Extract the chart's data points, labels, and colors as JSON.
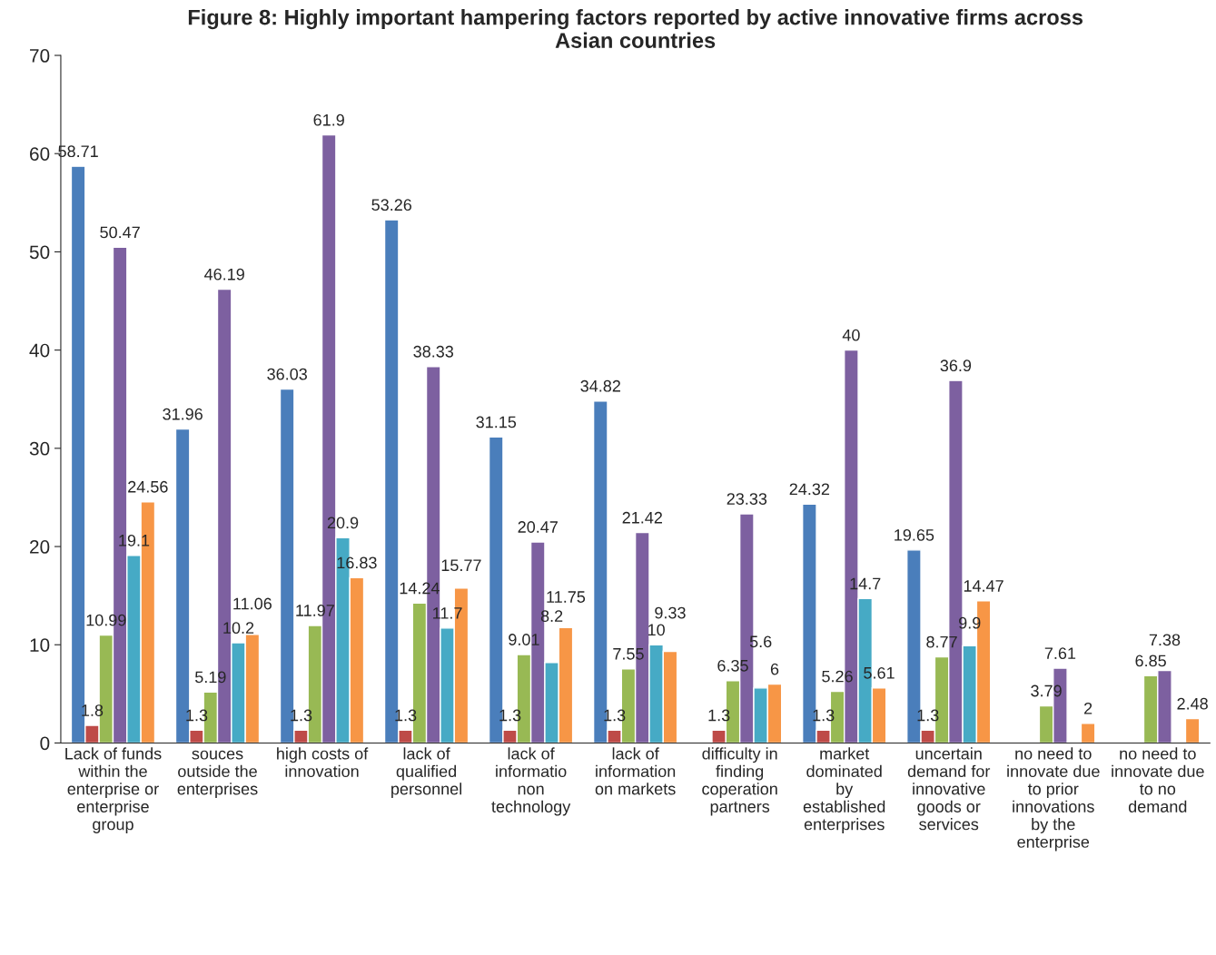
{
  "chart_data": {
    "type": "bar",
    "title": "Figure 8: Highly important hampering factors reported by active innovative firms across\nAsian countries",
    "categories": [
      "Lack of funds\nwithin the\nenterprise or\nenterprise\ngroup",
      "souces\noutside the\nenterprises",
      "high costs of\ninnovation",
      "lack of\nqualified\npersonnel",
      "lack of\ninformatio\nnon\ntechnology",
      "lack of\ninformation\non markets",
      "difficulty in\nfinding\ncoperation\npartners",
      "market\ndominated\nby\nestablished\nenterprises",
      "uncertain\ndemand for\ninnovative\ngoods or\nservices",
      "no need to\ninnovate due\nto prior\ninnovations\nby the\nenterprise",
      "no need to\ninnovate due\nto no\ndemand"
    ],
    "series": [
      {
        "color": "#4a7ebb",
        "values": [
          58.71,
          31.96,
          36.03,
          53.26,
          31.15,
          34.82,
          null,
          24.32,
          19.65,
          null,
          null
        ]
      },
      {
        "color": "#be4b48",
        "values": [
          1.8,
          1.3,
          1.3,
          1.3,
          1.3,
          1.3,
          1.3,
          1.3,
          1.3,
          null,
          null
        ]
      },
      {
        "color": "#98b954",
        "values": [
          10.99,
          5.19,
          11.97,
          14.24,
          9.01,
          7.55,
          6.35,
          5.26,
          8.77,
          3.79,
          6.85
        ]
      },
      {
        "color": "#7d60a0",
        "values": [
          50.47,
          46.19,
          61.9,
          38.33,
          20.47,
          21.42,
          23.33,
          40,
          36.9,
          7.61,
          7.38
        ]
      },
      {
        "color": "#46aac5",
        "values": [
          19.1,
          10.2,
          20.9,
          11.7,
          8.2,
          10,
          5.6,
          14.7,
          9.9,
          null,
          null
        ]
      },
      {
        "color": "#f79646",
        "values": [
          24.56,
          11.06,
          16.83,
          15.77,
          11.75,
          9.33,
          6,
          5.61,
          14.47,
          2,
          2.48
        ]
      }
    ],
    "ylim": [
      0,
      70
    ],
    "yticks": [
      0,
      10,
      20,
      30,
      40,
      50,
      60,
      70
    ],
    "grid": false,
    "legend": false,
    "data_labels": true
  }
}
